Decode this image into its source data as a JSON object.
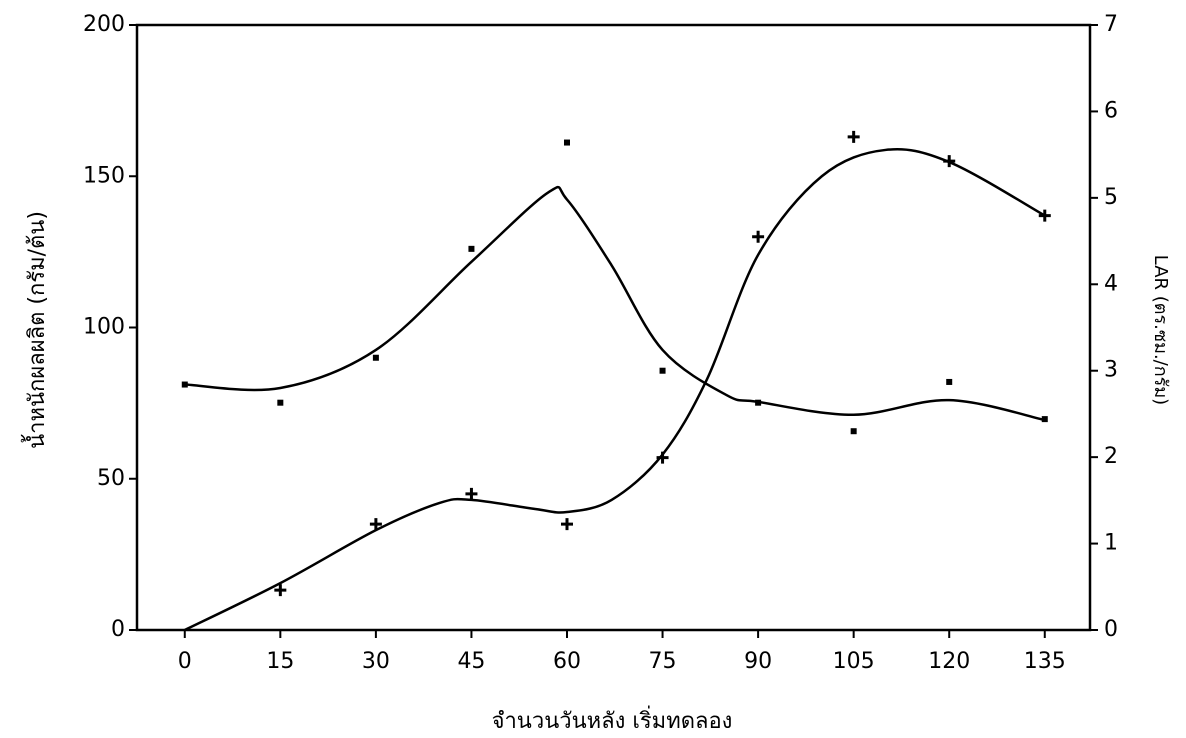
{
  "chart_data": {
    "type": "scatter",
    "xlabel": "จำนวนวันหลัง เริ่มทดลอง",
    "ylabel": "น้ำหนักผลผลิต  (กรัม/ต้น)",
    "y2label": "LAR (ตร.ซม./กรัม)",
    "xlim": [
      -7.5,
      142.1
    ],
    "xticks": [
      0,
      15,
      30,
      45,
      60,
      75,
      90,
      105,
      120,
      135
    ],
    "ylim": [
      0,
      200
    ],
    "yticks": [
      0,
      50,
      100,
      150,
      200
    ],
    "y2lim": [
      0,
      7
    ],
    "y2ticks": [
      0,
      1,
      2,
      3,
      4,
      5,
      6,
      7
    ],
    "series": [
      {
        "marker": "plus",
        "axis": "y",
        "color": "#000000",
        "x": [
          15,
          30,
          45,
          60,
          75,
          90,
          105,
          120,
          135
        ],
        "values": [
          13.2,
          35,
          45,
          35,
          57,
          130,
          163,
          155,
          137
        ]
      },
      {
        "marker": "dot",
        "axis": "y2",
        "color": "#000000",
        "x": [
          0,
          15,
          30,
          45,
          60,
          75,
          90,
          105,
          120,
          135
        ],
        "values": [
          2.84,
          2.63,
          3.15,
          4.41,
          5.64,
          3.0,
          2.63,
          2.3,
          2.87,
          2.44
        ]
      },
      {
        "marker": "line",
        "axis": "y",
        "color": "#000000",
        "x": [
          0,
          15,
          30,
          40,
          45,
          55,
          60,
          67,
          75,
          82,
          90,
          100,
          110,
          120,
          135
        ],
        "values": [
          0,
          15.5,
          33,
          42,
          43,
          40,
          39,
          43,
          58,
          83,
          124,
          150,
          158.7,
          154.7,
          137
        ]
      },
      {
        "marker": "line",
        "axis": "y2",
        "color": "#000000",
        "x": [
          0,
          15,
          30,
          45,
          57,
          60,
          67,
          75,
          85,
          90,
          105,
          120,
          135
        ],
        "values": [
          2.84,
          2.8,
          3.24,
          4.26,
          5.06,
          4.98,
          4.22,
          3.24,
          2.72,
          2.64,
          2.49,
          2.66,
          2.43
        ]
      }
    ]
  }
}
